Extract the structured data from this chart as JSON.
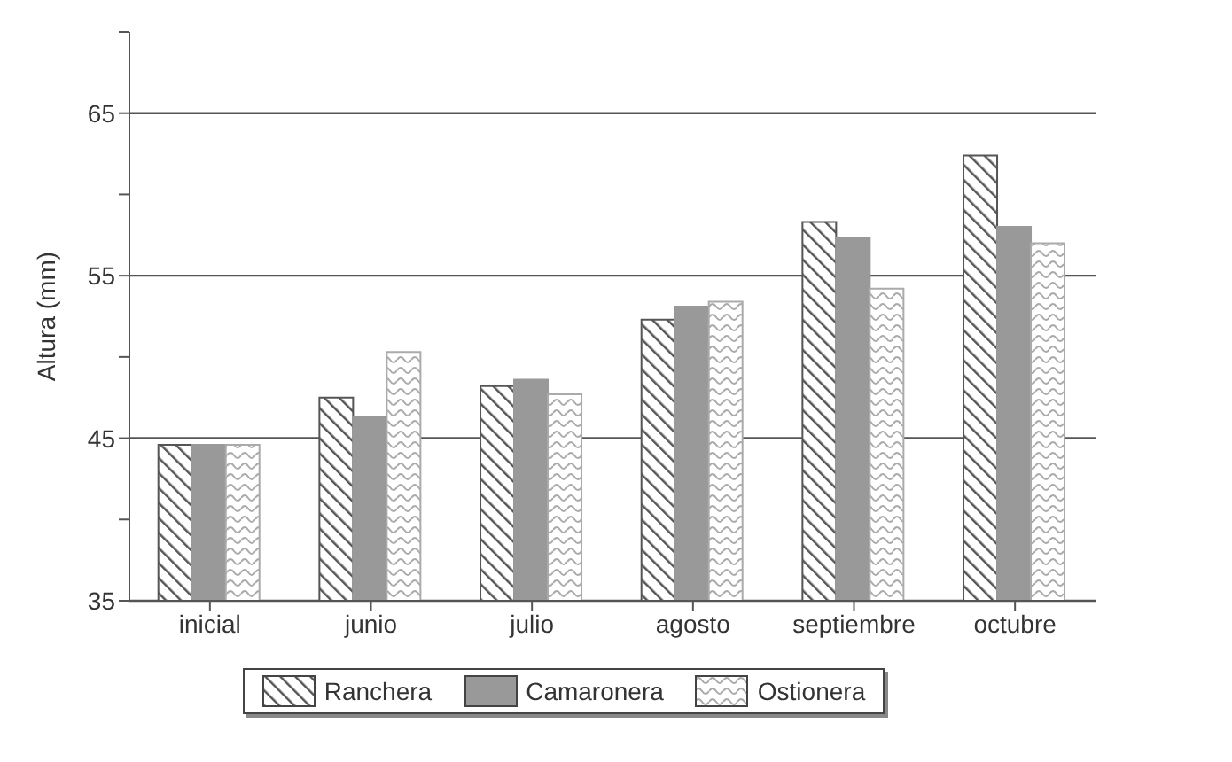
{
  "chart_data": {
    "type": "bar",
    "ylabel": "Altura (mm)",
    "categories": [
      "inicial",
      "junio",
      "julio",
      "agosto",
      "septiembre",
      "octubre"
    ],
    "series": [
      {
        "name": "Ranchera",
        "color": "#555555",
        "values": [
          44.6,
          47.5,
          48.2,
          52.3,
          58.3,
          62.4
        ]
      },
      {
        "name": "Camaronera",
        "color": "#999999",
        "values": [
          44.6,
          46.3,
          48.6,
          53.1,
          57.3,
          58.0
        ]
      },
      {
        "name": "Ostionera",
        "color": "#aaaaaa",
        "values": [
          44.6,
          50.3,
          47.7,
          53.4,
          54.2,
          57.0
        ]
      }
    ],
    "ylim": [
      35,
      70
    ],
    "yticks": [
      35,
      {
        "value": 40,
        "label": null
      },
      45,
      {
        "value": 50,
        "label": null
      },
      55,
      {
        "value": 60,
        "label": null
      },
      65,
      {
        "value": 70,
        "label": null
      }
    ],
    "grid": "y",
    "legend": "bottom"
  }
}
